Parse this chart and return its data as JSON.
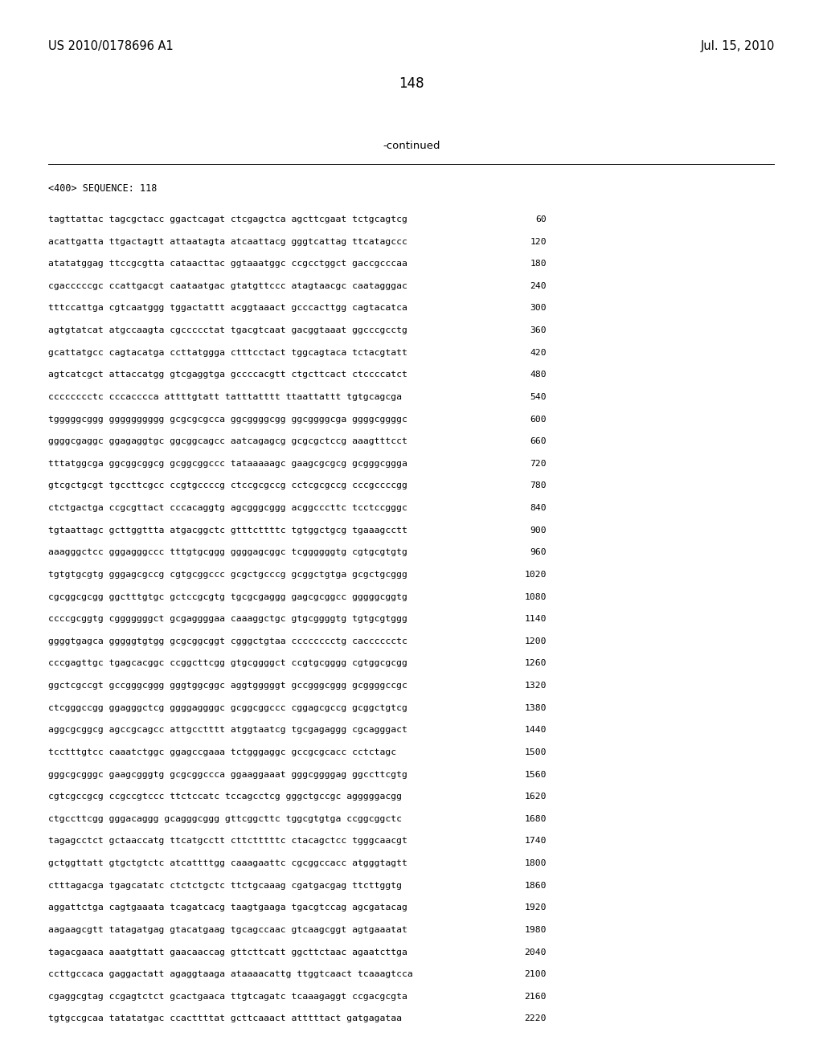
{
  "patent_left": "US 2010/0178696 A1",
  "patent_right": "Jul. 15, 2010",
  "page_number": "148",
  "continued_text": "-continued",
  "sequence_header": "<400> SEQUENCE: 118",
  "background_color": "#ffffff",
  "text_color": "#000000",
  "sequence_lines": [
    [
      "tagttattac tagcgctacc ggactcagat ctcgagctca agcttcgaat tctgcagtcg",
      "60"
    ],
    [
      "acattgatta ttgactagtt attaatagta atcaattacg gggtcattag ttcatagccc",
      "120"
    ],
    [
      "atatatggag ttccgcgtta cataacttac ggtaaatggc ccgcctggct gaccgcccaa",
      "180"
    ],
    [
      "cgacccccgc ccattgacgt caataatgac gtatgttccc atagtaacgc caatagggac",
      "240"
    ],
    [
      "tttccattga cgtcaatggg tggactattt acggtaaact gcccacttgg cagtacatca",
      "300"
    ],
    [
      "agtgtatcat atgccaagta cgccccctat tgacgtcaat gacggtaaat ggcccgcctg",
      "360"
    ],
    [
      "gcattatgcc cagtacatga ccttatggga ctttcctact tggcagtaca tctacgtatt",
      "420"
    ],
    [
      "agtcatcgct attaccatgg gtcgaggtga gccccacgtt ctgcttcact ctccccatct",
      "480"
    ],
    [
      "cccccccctc cccacccca attttgtatt tatttatttt ttaattattt tgtgcagcga",
      "540"
    ],
    [
      "tgggggcggg gggggggggg gcgcgcgcca ggcggggcgg ggcggggcga ggggcggggc",
      "600"
    ],
    [
      "ggggcgaggc ggagaggtgc ggcggcagcc aatcagagcg gcgcgctccg aaagtttcct",
      "660"
    ],
    [
      "tttatggcga ggcggcggcg gcggcggccc tataaaaagc gaagcgcgcg gcgggcggga",
      "720"
    ],
    [
      "gtcgctgcgt tgccttcgcc ccgtgccccg ctccgcgccg cctcgcgccg cccgccccgg",
      "780"
    ],
    [
      "ctctgactga ccgcgttact cccacaggtg agcgggcggg acggcccttc tcctccgggc",
      "840"
    ],
    [
      "tgtaattagc gcttggttta atgacggctc gtttcttttc tgtggctgcg tgaaagcctt",
      "900"
    ],
    [
      "aaagggctcc gggagggccc tttgtgcggg ggggagcggc tcggggggtg cgtgcgtgtg",
      "960"
    ],
    [
      "tgtgtgcgtg gggagcgccg cgtgcggccc gcgctgcccg gcggctgtga gcgctgcggg",
      "1020"
    ],
    [
      "cgcggcgcgg ggctttgtgc gctccgcgtg tgcgcgaggg gagcgcggcc gggggcggtg",
      "1080"
    ],
    [
      "ccccgcggtg cgggggggct gcgaggggaa caaaggctgc gtgcggggtg tgtgcgtggg",
      "1140"
    ],
    [
      "ggggtgagca gggggtgtgg gcgcggcggt cgggctgtaa cccccccctg cacccccctc",
      "1200"
    ],
    [
      "cccgagttgc tgagcacggc ccggcttcgg gtgcggggct ccgtgcgggg cgtggcgcgg",
      "1260"
    ],
    [
      "ggctcgccgt gccgggcggg gggtggcggc aggtgggggt gccgggcggg gcggggccgc",
      "1320"
    ],
    [
      "ctcgggccgg ggagggctcg ggggaggggc gcggcggccc cggagcgccg gcggctgtcg",
      "1380"
    ],
    [
      "aggcgcggcg agccgcagcc attgcctttt atggtaatcg tgcgagaggg cgcagggact",
      "1440"
    ],
    [
      "tcctttgtcc caaatctggc ggagccgaaa tctgggaggc gccgcgcacc cctctagc",
      "1500"
    ],
    [
      "gggcgcgggc gaagcgggtg gcgcggccca ggaaggaaat gggcggggag ggccttcgtg",
      "1560"
    ],
    [
      "cgtcgccgcg ccgccgtccc ttctccatc tccagcctcg gggctgccgc agggggacgg",
      "1620"
    ],
    [
      "ctgccttcgg gggacaggg gcagggcggg gttcggcttc tggcgtgtga ccggcggctc",
      "1680"
    ],
    [
      "tagagcctct gctaaccatg ttcatgcctt cttctttttc ctacagctcc tgggcaacgt",
      "1740"
    ],
    [
      "gctggttatt gtgctgtctc atcattttgg caaagaattc cgcggccacc atgggtagtt",
      "1800"
    ],
    [
      "ctttagacga tgagcatatc ctctctgctc ttctgcaaag cgatgacgag ttcttggtg",
      "1860"
    ],
    [
      "aggattctga cagtgaaata tcagatcacg taagtgaaga tgacgtccag agcgatacag",
      "1920"
    ],
    [
      "aagaagcgtt tatagatgag gtacatgaag tgcagccaac gtcaagcggt agtgaaatat",
      "1980"
    ],
    [
      "tagacgaaca aaatgttatt gaacaaccag gttcttcatt ggcttctaac agaatcttga",
      "2040"
    ],
    [
      "ccttgccaca gaggactatt agaggtaaga ataaaacattg ttggtcaact tcaaagtcca",
      "2100"
    ],
    [
      "cgaggcgtag ccgagtctct gcactgaaca ttgtcagatc tcaaagaggt ccgacgcgta",
      "2160"
    ],
    [
      "tgtgccgcaa tatatatgac ccacttttat gcttcaaact atttttact gatgagataa",
      "2220"
    ]
  ]
}
